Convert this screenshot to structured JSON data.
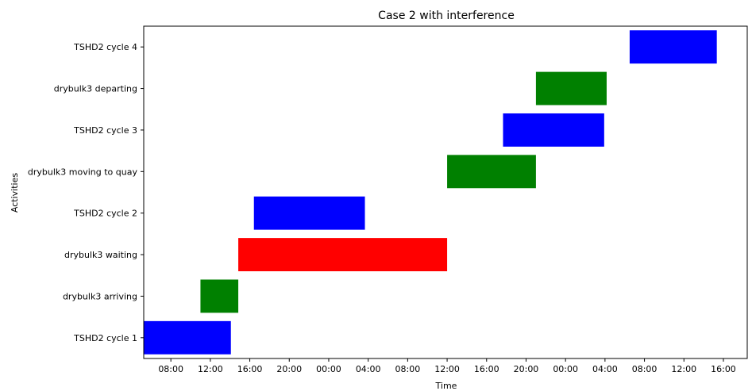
{
  "chart_data": {
    "type": "gantt",
    "title": "Case 2 with interference",
    "xlabel": "Time",
    "ylabel": "Activities",
    "xlim": [
      "Day1 05:15",
      "Day3 18:25"
    ],
    "x_ticks": [
      "08:00",
      "12:00",
      "16:00",
      "20:00",
      "00:00",
      "04:00",
      "08:00",
      "12:00",
      "16:00",
      "20:00",
      "00:00",
      "04:00",
      "08:00",
      "12:00",
      "16:00"
    ],
    "grid": false,
    "legend": "none",
    "categories": [
      "TSHD2 cycle 1",
      "drybulk3 arriving",
      "drybulk3 waiting",
      "TSHD2 cycle 2",
      "drybulk3 moving to quay",
      "TSHD2 cycle 3",
      "drybulk3 departing",
      "TSHD2 cycle 4"
    ],
    "bars": [
      {
        "activity": "TSHD2 cycle 1",
        "start": "Day1 05:15",
        "end": "Day1 14:05",
        "color": "#0000ff"
      },
      {
        "activity": "drybulk3 arriving",
        "start": "Day1 11:00",
        "end": "Day1 14:50",
        "color": "#008000"
      },
      {
        "activity": "drybulk3 waiting",
        "start": "Day1 14:50",
        "end": "Day2 12:00",
        "color": "#ff0000"
      },
      {
        "activity": "TSHD2 cycle 2",
        "start": "Day1 16:25",
        "end": "Day2 03:40",
        "color": "#0000ff"
      },
      {
        "activity": "drybulk3 moving to quay",
        "start": "Day2 12:00",
        "end": "Day2 21:00",
        "color": "#008000"
      },
      {
        "activity": "TSHD2 cycle 3",
        "start": "Day2 17:40",
        "end": "Day3 03:55",
        "color": "#0000ff"
      },
      {
        "activity": "drybulk3 departing",
        "start": "Day2 21:00",
        "end": "Day3 04:10",
        "color": "#008000"
      },
      {
        "activity": "TSHD2 cycle 4",
        "start": "Day3 06:30",
        "end": "Day3 15:20",
        "color": "#0000ff"
      }
    ]
  }
}
